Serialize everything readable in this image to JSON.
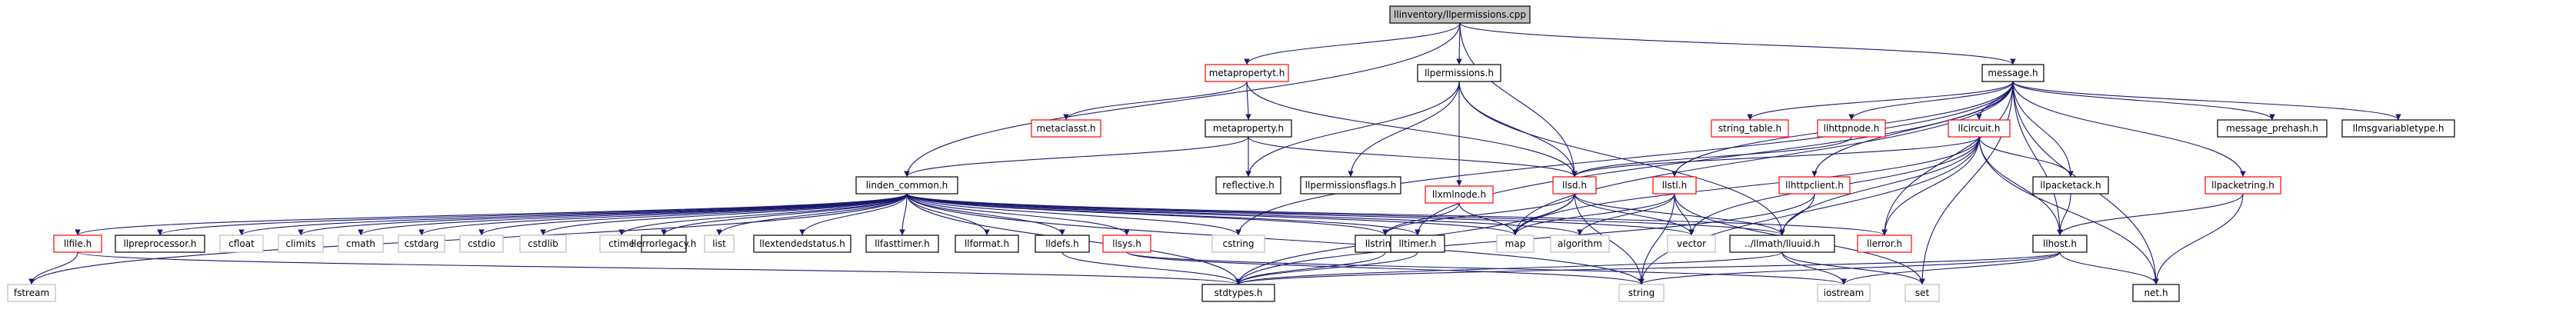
{
  "graph": {
    "colors": {
      "root_fill": "#bfbfbf",
      "default_border": "#000000",
      "missing_border": "#ff0000",
      "system_border": "#bfbfbf",
      "edge": "#191970"
    },
    "nodes": [
      {
        "id": "root",
        "label": "llinventory/llpermissions.cpp",
        "style": "root"
      },
      {
        "id": "metapropertyt",
        "label": "metapropertyt.h",
        "style": "missing"
      },
      {
        "id": "llpermissions_h",
        "label": "llpermissions.h",
        "style": "default"
      },
      {
        "id": "message",
        "label": "message.h",
        "style": "default"
      },
      {
        "id": "metaclasst",
        "label": "metaclasst.h",
        "style": "missing"
      },
      {
        "id": "metaproperty",
        "label": "metaproperty.h",
        "style": "default"
      },
      {
        "id": "llxmlnode",
        "label": "llxmlnode.h",
        "style": "missing"
      },
      {
        "id": "reflective",
        "label": "reflective.h",
        "style": "default"
      },
      {
        "id": "llpermissionsflags",
        "label": "llpermissionsflags.h",
        "style": "default"
      },
      {
        "id": "llsd",
        "label": "llsd.h",
        "style": "missing"
      },
      {
        "id": "llstl",
        "label": "llstl.h",
        "style": "missing"
      },
      {
        "id": "llhttpclient",
        "label": "llhttpclient.h",
        "style": "missing"
      },
      {
        "id": "string_table",
        "label": "string_table.h",
        "style": "missing"
      },
      {
        "id": "llhttpnode",
        "label": "llhttpnode.h",
        "style": "missing"
      },
      {
        "id": "llcircuit",
        "label": "llcircuit.h",
        "style": "missing"
      },
      {
        "id": "llpacketack",
        "label": "llpacketack.h",
        "style": "default"
      },
      {
        "id": "llpacketring",
        "label": "llpacketring.h",
        "style": "missing"
      },
      {
        "id": "message_prehash",
        "label": "message_prehash.h",
        "style": "default"
      },
      {
        "id": "llmsgvariabletype",
        "label": "llmsgvariabletype.h",
        "style": "default"
      },
      {
        "id": "linden_common",
        "label": "linden_common.h",
        "style": "default"
      },
      {
        "id": "llfile",
        "label": "llfile.h",
        "style": "missing"
      },
      {
        "id": "llpreprocessor",
        "label": "llpreprocessor.h",
        "style": "default"
      },
      {
        "id": "cfloat",
        "label": "cfloat",
        "style": "system"
      },
      {
        "id": "climits",
        "label": "climits",
        "style": "system"
      },
      {
        "id": "cmath",
        "label": "cmath",
        "style": "system"
      },
      {
        "id": "cstdarg",
        "label": "cstdarg",
        "style": "system"
      },
      {
        "id": "cstdio",
        "label": "cstdio",
        "style": "system"
      },
      {
        "id": "cstdlib",
        "label": "cstdlib",
        "style": "system"
      },
      {
        "id": "ctime",
        "label": "ctime",
        "style": "system"
      },
      {
        "id": "list",
        "label": "list",
        "style": "system"
      },
      {
        "id": "llerrorlegacy",
        "label": "llerrorlegacy.h",
        "style": "default"
      },
      {
        "id": "llextendedstatus",
        "label": "llextendedstatus.h",
        "style": "default"
      },
      {
        "id": "llfasttimer",
        "label": "llfasttimer.h",
        "style": "default"
      },
      {
        "id": "llformat",
        "label": "llformat.h",
        "style": "default"
      },
      {
        "id": "lldefs",
        "label": "lldefs.h",
        "style": "default"
      },
      {
        "id": "llsys",
        "label": "llsys.h",
        "style": "missing"
      },
      {
        "id": "cstring",
        "label": "cstring",
        "style": "system"
      },
      {
        "id": "llstring",
        "label": "llstring.h",
        "style": "default"
      },
      {
        "id": "lltimer",
        "label": "lltimer.h",
        "style": "default"
      },
      {
        "id": "map",
        "label": "map",
        "style": "system"
      },
      {
        "id": "algorithm",
        "label": "algorithm",
        "style": "system"
      },
      {
        "id": "vector",
        "label": "vector",
        "style": "system"
      },
      {
        "id": "lluuid",
        "label": "../llmath/lluuid.h",
        "style": "default"
      },
      {
        "id": "llerror",
        "label": "llerror.h",
        "style": "missing"
      },
      {
        "id": "llhost",
        "label": "llhost.h",
        "style": "default"
      },
      {
        "id": "fstream",
        "label": "fstream",
        "style": "system"
      },
      {
        "id": "stdtypes",
        "label": "stdtypes.h",
        "style": "default"
      },
      {
        "id": "string",
        "label": "string",
        "style": "system"
      },
      {
        "id": "iostream",
        "label": "iostream",
        "style": "system"
      },
      {
        "id": "set",
        "label": "set",
        "style": "system"
      },
      {
        "id": "net",
        "label": "net.h",
        "style": "default"
      }
    ],
    "edges": [
      [
        "root",
        "metapropertyt"
      ],
      [
        "root",
        "llpermissions_h"
      ],
      [
        "root",
        "message"
      ],
      [
        "root",
        "linden_common"
      ],
      [
        "root",
        "llsd"
      ],
      [
        "metapropertyt",
        "metaclasst"
      ],
      [
        "metapropertyt",
        "metaproperty"
      ],
      [
        "metapropertyt",
        "llsd"
      ],
      [
        "metaproperty",
        "reflective"
      ],
      [
        "metaproperty",
        "linden_common"
      ],
      [
        "metaproperty",
        "llsd"
      ],
      [
        "llpermissions_h",
        "llpermissionsflags"
      ],
      [
        "llpermissions_h",
        "llxmlnode"
      ],
      [
        "llpermissions_h",
        "llsd"
      ],
      [
        "llpermissions_h",
        "lluuid"
      ],
      [
        "llpermissions_h",
        "reflective"
      ],
      [
        "llxmlnode",
        "llstring"
      ],
      [
        "llxmlnode",
        "map"
      ],
      [
        "llsd",
        "map"
      ],
      [
        "llsd",
        "string"
      ],
      [
        "llsd",
        "stdtypes"
      ],
      [
        "llsd",
        "lluuid"
      ],
      [
        "llsd",
        "llstring"
      ],
      [
        "llsd",
        "vector"
      ],
      [
        "message",
        "message_prehash"
      ],
      [
        "message",
        "llmsgvariabletype"
      ],
      [
        "message",
        "string_table"
      ],
      [
        "message",
        "llhttpnode"
      ],
      [
        "message",
        "llcircuit"
      ],
      [
        "message",
        "llpacketack"
      ],
      [
        "message",
        "llpacketring"
      ],
      [
        "message",
        "llhttpclient"
      ],
      [
        "message",
        "llstl"
      ],
      [
        "message",
        "llhost"
      ],
      [
        "message",
        "lltimer"
      ],
      [
        "message",
        "llerror"
      ],
      [
        "message",
        "net"
      ],
      [
        "message",
        "set"
      ],
      [
        "message",
        "cstring"
      ],
      [
        "message",
        "map"
      ],
      [
        "llhttpnode",
        "llsd"
      ],
      [
        "llcircuit",
        "llpacketack"
      ],
      [
        "llcircuit",
        "llhost"
      ],
      [
        "llcircuit",
        "llerror"
      ],
      [
        "llcircuit",
        "lluuid"
      ],
      [
        "llcircuit",
        "map"
      ],
      [
        "llcircuit",
        "vector"
      ],
      [
        "llcircuit",
        "net"
      ],
      [
        "llcircuit",
        "string"
      ],
      [
        "llcircuit",
        "llsd"
      ],
      [
        "llpacketack",
        "llhost"
      ],
      [
        "llpacketring",
        "llhost"
      ],
      [
        "llpacketring",
        "net"
      ],
      [
        "llhttpclient",
        "lluuid"
      ],
      [
        "llhttpclient",
        "stdtypes"
      ],
      [
        "llstl",
        "map"
      ],
      [
        "llstl",
        "vector"
      ],
      [
        "llstl",
        "set"
      ],
      [
        "llstl",
        "algorithm"
      ],
      [
        "llstl",
        "string"
      ],
      [
        "llhost",
        "string"
      ],
      [
        "llhost",
        "iostream"
      ],
      [
        "llhost",
        "net"
      ],
      [
        "llhost",
        "stdtypes"
      ],
      [
        "lluuid",
        "iostream"
      ],
      [
        "lluuid",
        "set"
      ],
      [
        "lluuid",
        "stdtypes"
      ],
      [
        "linden_common",
        "llfile"
      ],
      [
        "linden_common",
        "llpreprocessor"
      ],
      [
        "linden_common",
        "cfloat"
      ],
      [
        "linden_common",
        "climits"
      ],
      [
        "linden_common",
        "cmath"
      ],
      [
        "linden_common",
        "cstdarg"
      ],
      [
        "linden_common",
        "cstdio"
      ],
      [
        "linden_common",
        "cstdlib"
      ],
      [
        "linden_common",
        "ctime"
      ],
      [
        "linden_common",
        "list"
      ],
      [
        "linden_common",
        "llerrorlegacy"
      ],
      [
        "linden_common",
        "llextendedstatus"
      ],
      [
        "linden_common",
        "llfasttimer"
      ],
      [
        "linden_common",
        "llformat"
      ],
      [
        "linden_common",
        "lldefs"
      ],
      [
        "linden_common",
        "llsys"
      ],
      [
        "linden_common",
        "cstring"
      ],
      [
        "linden_common",
        "llstring"
      ],
      [
        "linden_common",
        "lltimer"
      ],
      [
        "linden_common",
        "map"
      ],
      [
        "linden_common",
        "algorithm"
      ],
      [
        "linden_common",
        "vector"
      ],
      [
        "linden_common",
        "lluuid"
      ],
      [
        "linden_common",
        "llerror"
      ],
      [
        "linden_common",
        "fstream"
      ],
      [
        "linden_common",
        "stdtypes"
      ],
      [
        "linden_common",
        "string"
      ],
      [
        "llfile",
        "fstream"
      ],
      [
        "llfile",
        "stdtypes"
      ],
      [
        "lldefs",
        "stdtypes"
      ],
      [
        "llsys",
        "iostream"
      ],
      [
        "llsys",
        "string"
      ],
      [
        "lltimer",
        "stdtypes"
      ],
      [
        "llstring",
        "stdtypes"
      ]
    ]
  }
}
